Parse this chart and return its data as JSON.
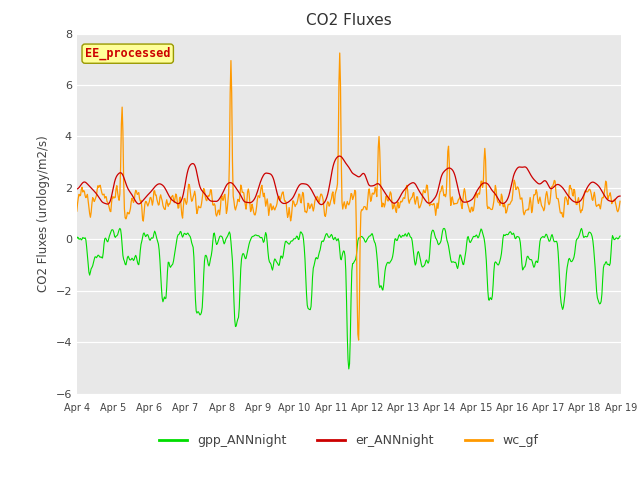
{
  "title": "CO2 Fluxes",
  "ylabel": "CO2 Fluxes (urology/m2/s)",
  "ylim": [
    -6,
    8
  ],
  "yticks": [
    -6,
    -4,
    -2,
    0,
    2,
    4,
    6,
    8
  ],
  "date_labels": [
    "Apr 4",
    "Apr 5",
    "Apr 6",
    "Apr 7",
    "Apr 8",
    "Apr 9",
    "Apr 10",
    "Apr 11",
    "Apr 12",
    "Apr 13",
    "Apr 14",
    "Apr 15",
    "Apr 16",
    "Apr 17",
    "Apr 18",
    "Apr 19"
  ],
  "gpp_color": "#00dd00",
  "er_color": "#cc0000",
  "wc_color": "#ff9900",
  "legend_labels": [
    "gpp_ANNnight",
    "er_ANNnight",
    "wc_gf"
  ],
  "annotation_text": "EE_processed",
  "annotation_color": "#cc0000",
  "annotation_bg": "#ffff99",
  "annotation_border": "#999900",
  "plot_bg": "#e8e8e8",
  "title_fontsize": 11,
  "n_points": 720,
  "seed": 123
}
